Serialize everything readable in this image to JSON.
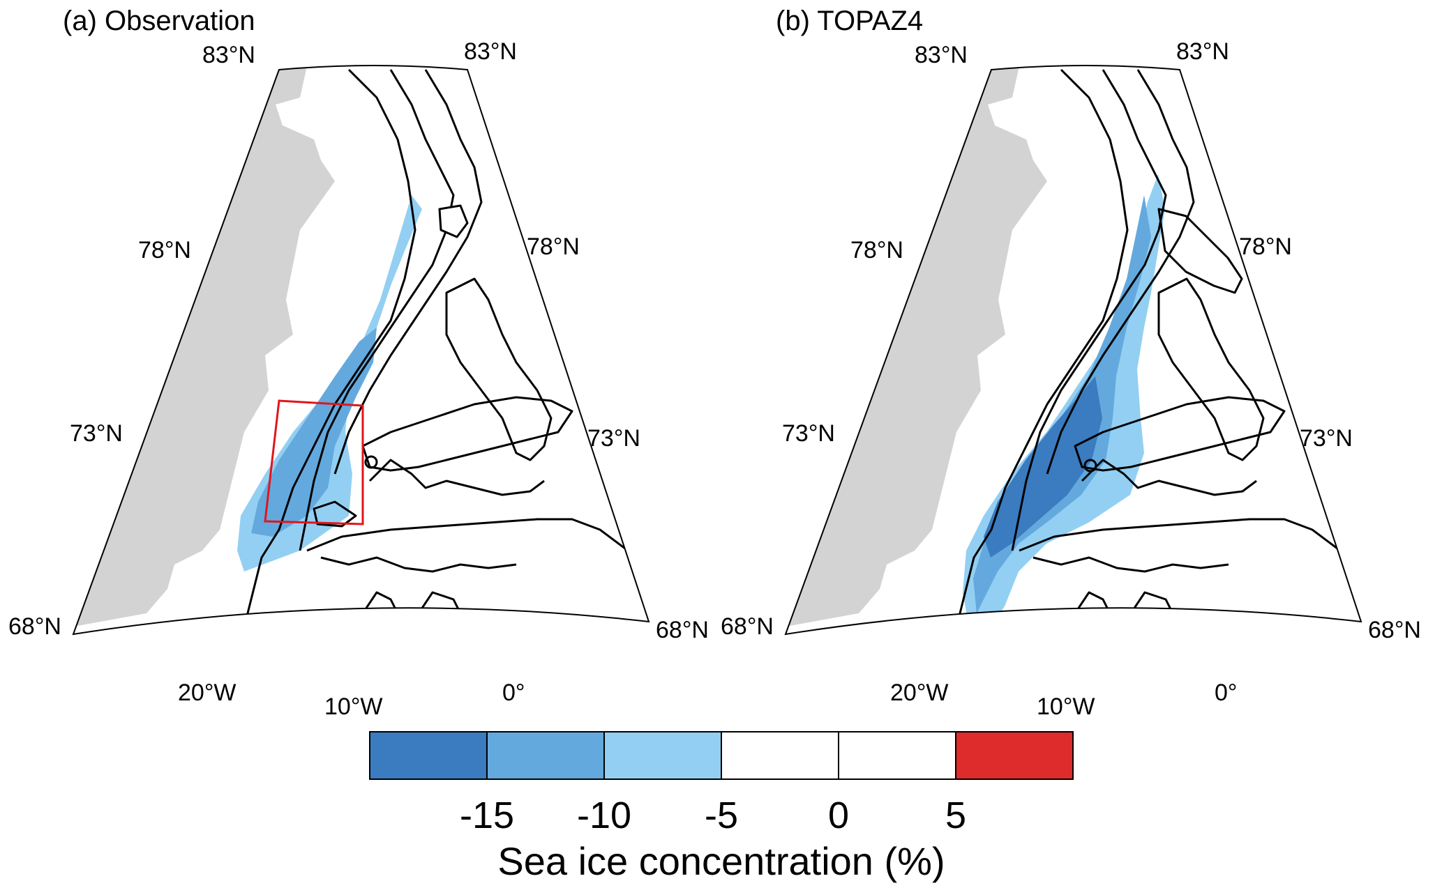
{
  "figure": {
    "panels": [
      {
        "id": "a",
        "title": "(a) Observation",
        "lat_labels": [
          "83°N",
          "83°N",
          "78°N",
          "78°N",
          "73°N",
          "73°N",
          "68°N",
          "68°N"
        ],
        "lon_labels": [
          "20°W",
          "10°W",
          "0°"
        ],
        "has_box": true
      },
      {
        "id": "b",
        "title": "(b) TOPAZ4",
        "lat_labels": [
          "83°N",
          "83°N",
          "78°N",
          "78°N",
          "73°N",
          "73°N",
          "68°N",
          "68°N"
        ],
        "lon_labels": [
          "20°W",
          "10°W",
          "0°"
        ],
        "has_box": false
      }
    ],
    "colorbar": {
      "title": "Sea ice concentration (%)",
      "ticks": [
        "-15",
        "-10",
        "-5",
        "0",
        "5"
      ],
      "bins": [
        {
          "range": "< -15",
          "color": "#3b7bc0"
        },
        {
          "range": "-15 to -10",
          "color": "#63a9de"
        },
        {
          "range": "-10 to -5",
          "color": "#93cff2"
        },
        {
          "range": "-5 to 0",
          "color": "#ffffff"
        },
        {
          "range": "0 to 5",
          "color": "#ffffff"
        },
        {
          "range": "> 5",
          "color": "#dd2c2b"
        }
      ]
    },
    "colors": {
      "land": "#d3d3d3",
      "box": "#e0161c",
      "contour": "#000000"
    }
  }
}
